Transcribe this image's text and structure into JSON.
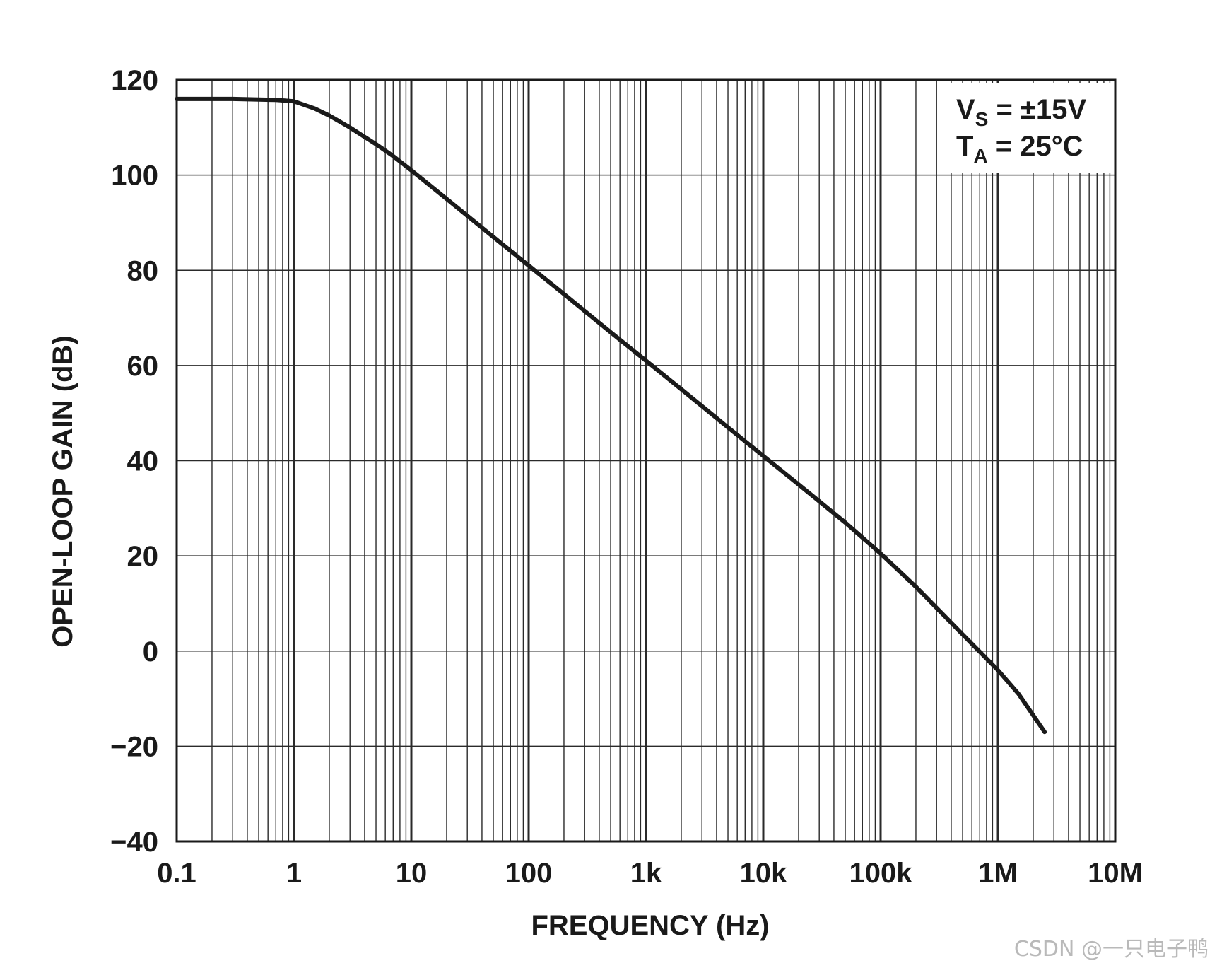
{
  "chart_data": {
    "type": "line",
    "title": "",
    "xlabel": "FREQUENCY (Hz)",
    "ylabel": "OPEN-LOOP GAIN (dB)",
    "xscale": "log",
    "xlim": [
      0.1,
      10000000
    ],
    "ylim": [
      -40,
      120
    ],
    "grid": true,
    "x_ticks": [
      {
        "value": 0.1,
        "label": "0.1"
      },
      {
        "value": 1,
        "label": "1"
      },
      {
        "value": 10,
        "label": "10"
      },
      {
        "value": 100,
        "label": "100"
      },
      {
        "value": 1000,
        "label": "1k"
      },
      {
        "value": 10000,
        "label": "10k"
      },
      {
        "value": 100000,
        "label": "100k"
      },
      {
        "value": 1000000,
        "label": "1M"
      },
      {
        "value": 10000000,
        "label": "10M"
      }
    ],
    "y_ticks": [
      {
        "value": 120,
        "label": "120"
      },
      {
        "value": 100,
        "label": "100"
      },
      {
        "value": 80,
        "label": "80"
      },
      {
        "value": 60,
        "label": "60"
      },
      {
        "value": 40,
        "label": "40"
      },
      {
        "value": 20,
        "label": "20"
      },
      {
        "value": 0,
        "label": "0"
      },
      {
        "value": -20,
        "label": "−20"
      },
      {
        "value": -40,
        "label": "−40"
      }
    ],
    "series": [
      {
        "name": "Open-loop gain",
        "color": "#1a1a1a",
        "x": [
          0.1,
          0.3,
          0.7,
          1,
          1.5,
          2,
          3,
          5,
          7,
          10,
          20,
          50,
          100,
          200,
          500,
          1000,
          2000,
          5000,
          10000,
          20000,
          50000,
          100000,
          200000,
          500000,
          1000000,
          1500000,
          2500000
        ],
        "y": [
          116,
          116,
          115.8,
          115.5,
          114,
          112.5,
          110,
          106.5,
          104,
          101,
          95,
          87,
          81,
          75,
          67,
          61,
          55,
          47,
          41,
          35,
          27,
          20.5,
          13.5,
          3.5,
          -4,
          -9,
          -17
        ]
      }
    ],
    "legend": {
      "position": "top-right",
      "lines": [
        {
          "main": "V",
          "sub": "S",
          "rest": " = ±15V"
        },
        {
          "main": "T",
          "sub": "A",
          "rest": " = 25°C"
        }
      ]
    }
  },
  "watermark": "CSDN @一只电子鸭",
  "colors": {
    "ink": "#1a1a1a",
    "grid": "#2a2a2a",
    "background": "#ffffff",
    "watermark": "#b9b9b9"
  }
}
